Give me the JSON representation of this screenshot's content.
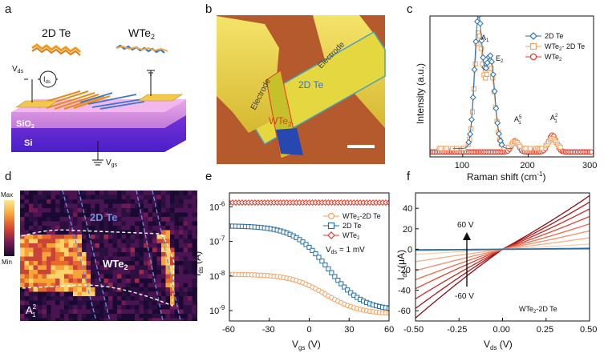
{
  "figure": {
    "panel_letters": [
      "a",
      "b",
      "c",
      "d",
      "e",
      "f"
    ]
  },
  "panel_a": {
    "label_2d_te": "2D Te",
    "label_wte2_main": "WTe",
    "label_wte2_sub": "2",
    "vds_main": "V",
    "vds_sub": "ds",
    "ids_main": "I",
    "ids_sub": "ds",
    "sio2_main": "SiO",
    "sio2_sub": "2",
    "si": "Si",
    "vgs_main": "V",
    "vgs_sub": "gs"
  },
  "panel_b": {
    "electrode_left": "Electrode",
    "electrode_right": "Electrode",
    "te_label": "2D Te",
    "wte2_main": "WTe",
    "wte2_sub": "2"
  },
  "panel_d": {
    "scale_max": "Max",
    "scale_min": "Min",
    "te_label": "2D Te",
    "wte2_main": "WTe",
    "wte2_sub": "2",
    "mode_main": "A",
    "mode_sup": "2",
    "mode_sub": "1"
  },
  "colors": {
    "series_te": "#2a6ea6",
    "series_hetero": "#f2a15e",
    "series_wte2": "#dd3a2a"
  },
  "chart_data": [
    {
      "id": "c",
      "type": "line",
      "xlabel": "Raman shift (cm",
      "xlabel_sup": "-1",
      "xlabel_tail": ")",
      "ylabel": "Intensity (a.u.)",
      "xlim": [
        50,
        300
      ],
      "ylim": [
        0,
        1
      ],
      "xticks": [
        100,
        200,
        300
      ],
      "legend": [
        {
          "name": "2D Te",
          "marker": "diamond"
        },
        {
          "name_main": "WTe",
          "name_sub": "2",
          "name_tail": "- 2D Te",
          "marker": "square"
        },
        {
          "name_main": "WTe",
          "name_sub": "2",
          "marker": "circle"
        }
      ],
      "annotations": [
        {
          "main": "A",
          "sub": "1",
          "x": 124
        },
        {
          "main": "E",
          "sub": "2",
          "x": 142
        },
        {
          "main": "A",
          "sup": "5",
          "sub": "1",
          "x": 180
        },
        {
          "main": "A",
          "sup": "2",
          "sub": "1",
          "x": 237
        }
      ],
      "series": [
        {
          "name": "2D Te",
          "peaks": [
            [
              124,
              0.92,
              6
            ],
            [
              142,
              0.65,
              7
            ]
          ],
          "baseline": 0.02,
          "offset": 0.04,
          "x_range": [
            85,
            175
          ]
        },
        {
          "name": "WTe2-2D Te",
          "peaks": [
            [
              124,
              0.8,
              6
            ],
            [
              142,
              0.58,
              7
            ],
            [
              180,
              0.05,
              5
            ],
            [
              237,
              0.07,
              6
            ]
          ],
          "baseline": 0.02,
          "offset": 0.04,
          "x_range": [
            60,
            250
          ]
        },
        {
          "name": "WTe2",
          "peaks": [
            [
              180,
              0.08,
              5
            ],
            [
              237,
              0.12,
              6
            ]
          ],
          "baseline": 0.0,
          "offset": 0.035,
          "x_range": [
            52,
            298
          ]
        }
      ]
    },
    {
      "id": "e",
      "type": "line",
      "xlabel_main": "V",
      "xlabel_sub": "gs",
      "xlabel_tail": " (V)",
      "ylabel_main": "I",
      "ylabel_sub": "ds",
      "ylabel_tail": " (A)",
      "xlim": [
        -60,
        60
      ],
      "ylim_log": [
        -9.3,
        -5.6
      ],
      "xticks": [
        -60,
        -30,
        0,
        30,
        60
      ],
      "yticks": [
        {
          "main": "10",
          "sup": "-9",
          "exp": -9
        },
        {
          "main": "10",
          "sup": "-8",
          "exp": -8
        },
        {
          "main": "10",
          "sup": "-7",
          "exp": -7
        },
        {
          "main": "10",
          "sup": "-6",
          "exp": -6
        }
      ],
      "annotation_main": "V",
      "annotation_sub": "ds",
      "annotation_tail": " = 1 mV",
      "legend": [
        {
          "name_main": "WTe",
          "name_sub": "2",
          "name_tail": "-2D Te",
          "marker": "circle"
        },
        {
          "name": "2D Te",
          "marker": "square"
        },
        {
          "name_main": "WTe",
          "name_sub": "2",
          "marker": "diamond"
        }
      ],
      "series": [
        {
          "name": "WTe2-2D Te",
          "log_high": -7.95,
          "log_low": -9.1,
          "center": 12,
          "width": 13
        },
        {
          "name": "2D Te",
          "log_high": -6.55,
          "log_low": -9.0,
          "center": 14,
          "width": 13
        },
        {
          "name": "WTe2",
          "log_const": -5.88
        }
      ]
    },
    {
      "id": "f",
      "type": "line",
      "xlabel_main": "V",
      "xlabel_sub": "ds",
      "xlabel_tail": " (V)",
      "ylabel_main": "I",
      "ylabel_sub": "ds",
      "ylabel_tail": " (μA)",
      "xlim": [
        -0.5,
        0.5
      ],
      "ylim": [
        -70,
        55
      ],
      "xticks": [
        "-0.50",
        "-0.25",
        "0.00",
        "0.25",
        "0.50"
      ],
      "yticks": [
        -60,
        -40,
        -20,
        0,
        20,
        40
      ],
      "arrow_top": "60 V",
      "arrow_bottom": "-60 V",
      "legend_main": "WTe",
      "legend_sub": "2",
      "legend_tail": "-2D Te",
      "series": [
        {
          "vgs": -60,
          "slope_pos": 93,
          "slope_neg": 122
        },
        {
          "vgs": -45,
          "slope_pos": 82,
          "slope_neg": 105
        },
        {
          "vgs": -30,
          "slope_pos": 70,
          "slope_neg": 88
        },
        {
          "vgs": -15,
          "slope_pos": 57,
          "slope_neg": 70
        },
        {
          "vgs": 0,
          "slope_pos": 44,
          "slope_neg": 54
        },
        {
          "vgs": 15,
          "slope_pos": 32,
          "slope_neg": 38
        },
        {
          "vgs": 30,
          "slope_pos": 20,
          "slope_neg": 22
        },
        {
          "vgs": 45,
          "slope_pos": 9,
          "slope_neg": 9
        },
        {
          "vgs": 60,
          "slope_pos": 1.5,
          "slope_neg": 1.5
        }
      ]
    }
  ]
}
